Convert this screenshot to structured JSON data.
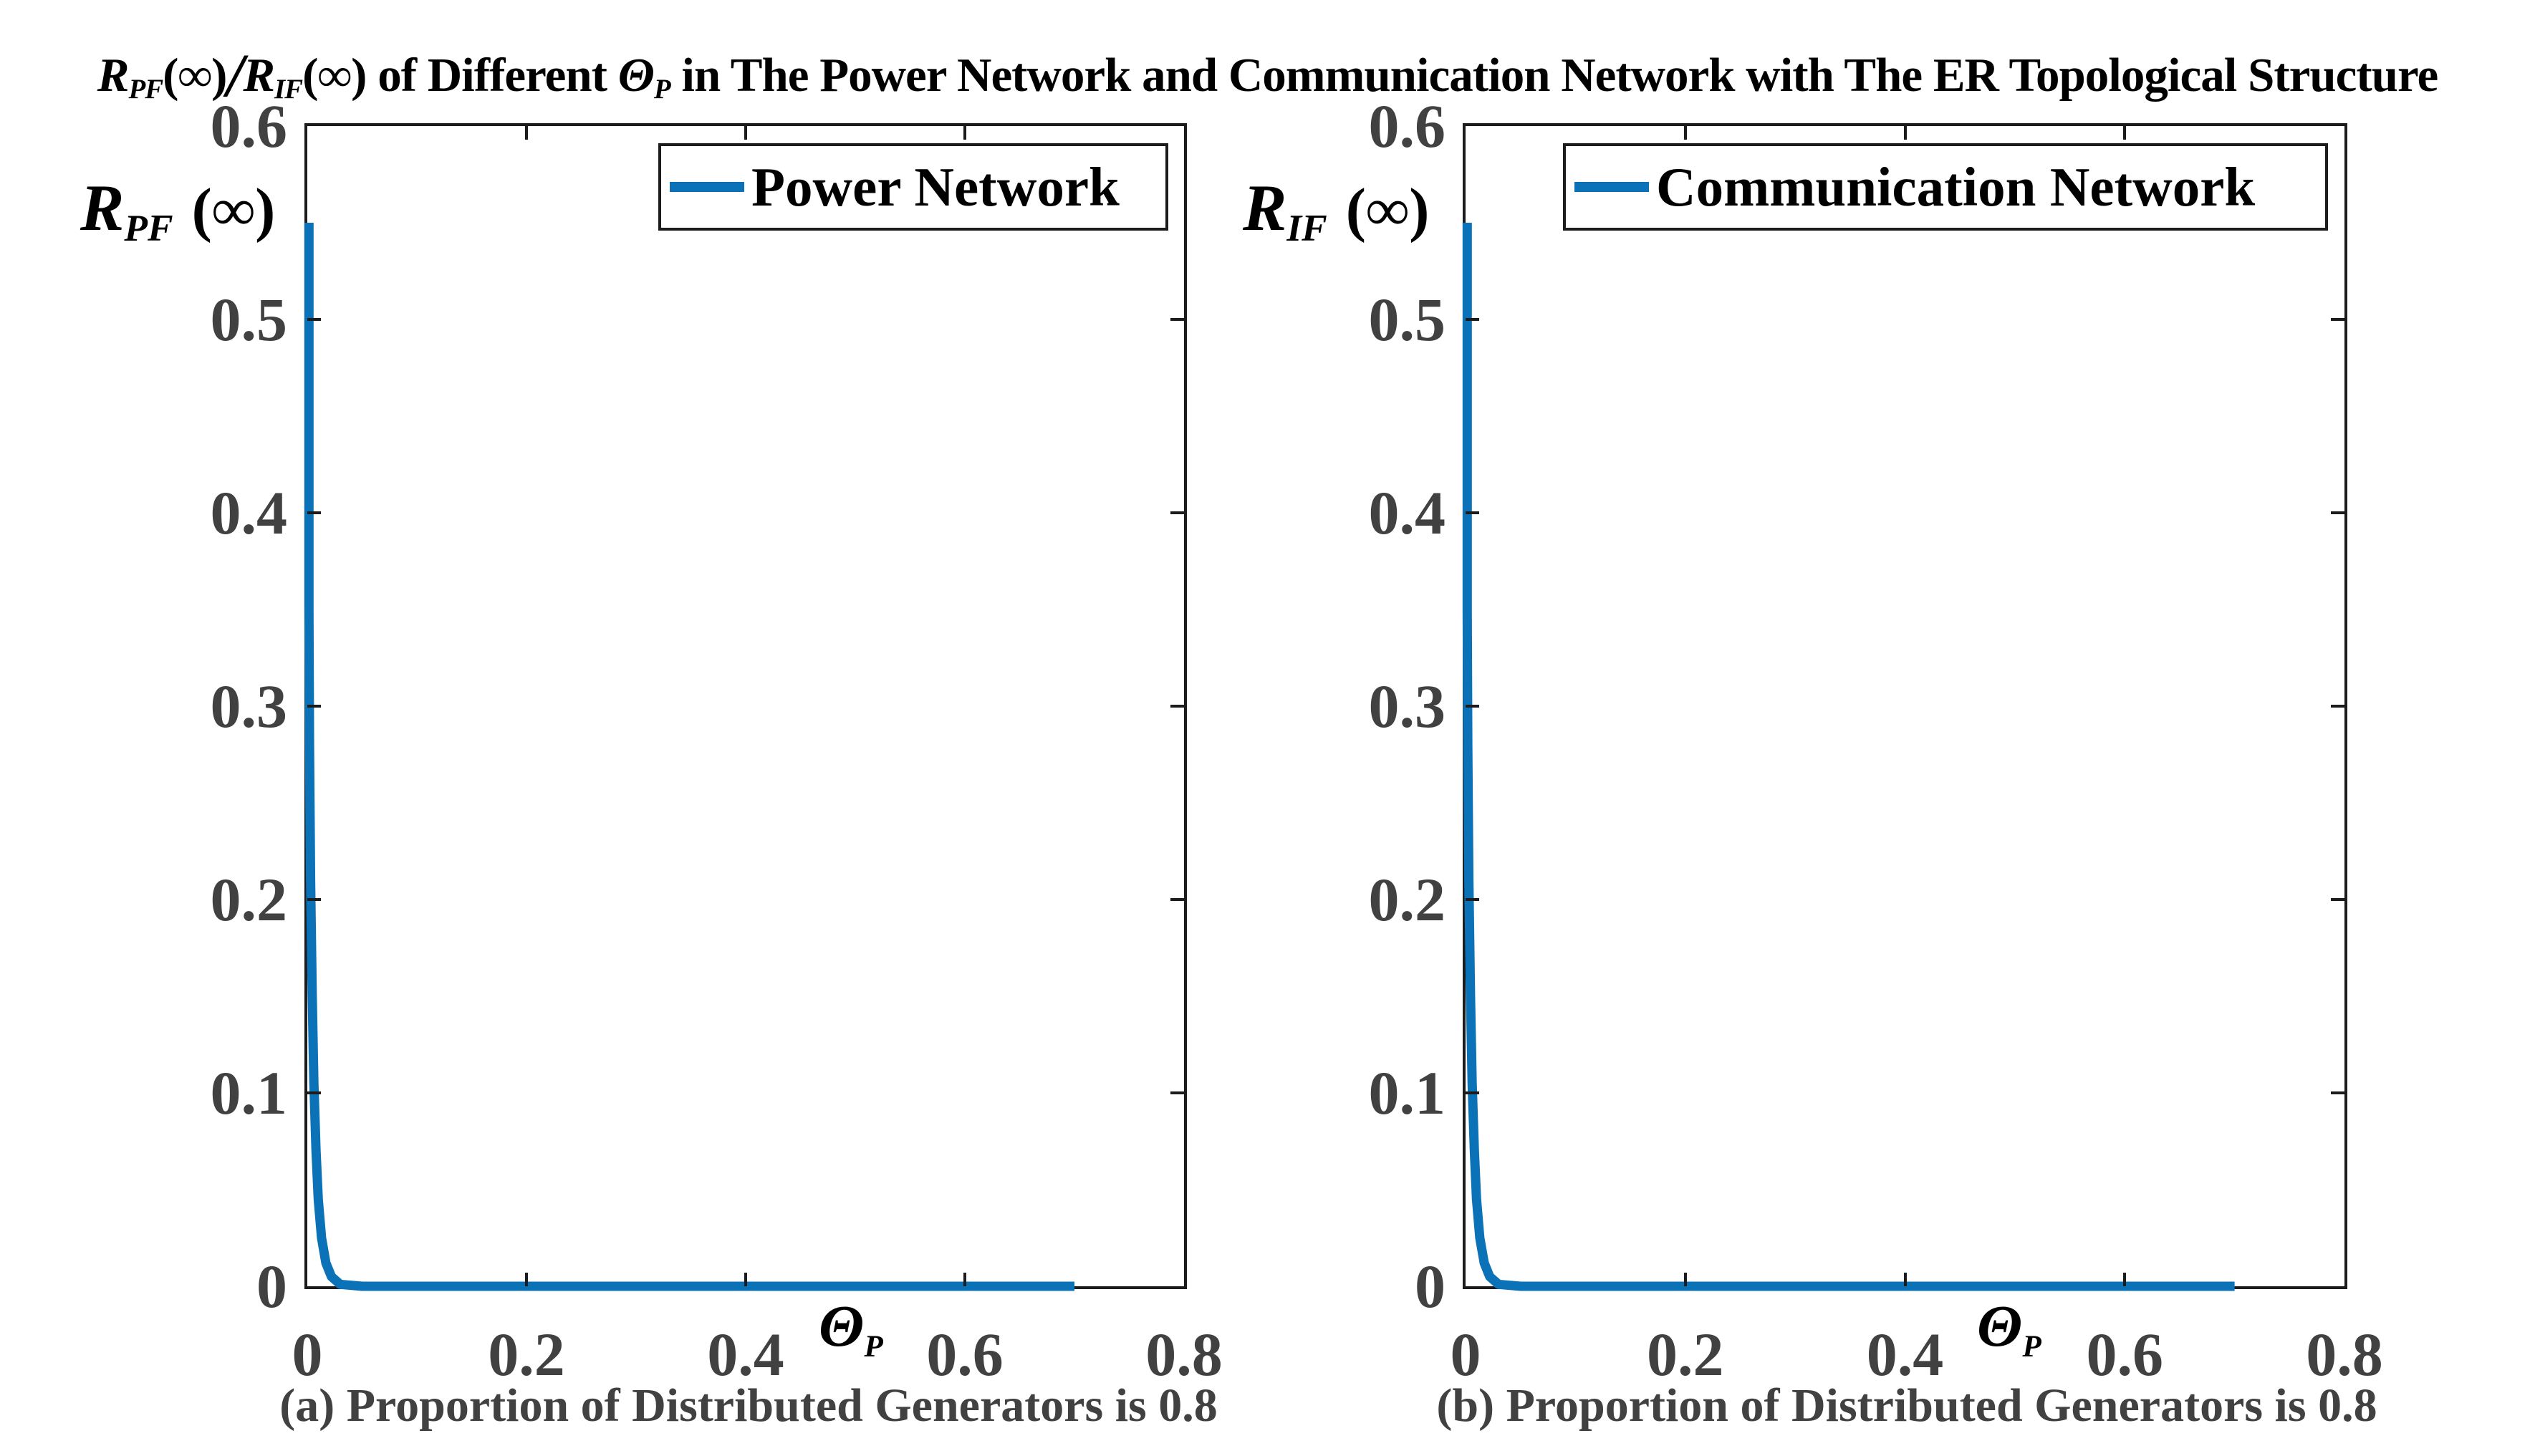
{
  "figure": {
    "title": {
      "r1": "R",
      "r1_sub": "PF",
      "inf1": "(∞)",
      "slash": "/",
      "r2": "R",
      "r2_sub": "IF",
      "inf2": "(∞)",
      "mid": " of Different ",
      "theta": "Θ",
      "theta_sub": "P",
      "rest": " in The Power Network and Communication Network with The ER Topological Structure"
    }
  },
  "charts": [
    {
      "ylabel": {
        "base": "R",
        "sub": "PF",
        "suffix": "(∞)"
      },
      "xlabel": {
        "base": "Θ",
        "sub": "P"
      },
      "legend_label": "Power Network",
      "caption": "(a) Proportion of Distributed Generators is 0.8"
    },
    {
      "ylabel": {
        "base": "R",
        "sub": "IF",
        "suffix": "(∞)"
      },
      "xlabel": {
        "base": "Θ",
        "sub": "P"
      },
      "legend_label": "Communication Network",
      "caption": "(b) Proportion of Distributed Generators is 0.8"
    }
  ],
  "colors": {
    "curve_blue": "#0b72b8",
    "axis": "#1c1c1c",
    "tick_label_gray": "#414141"
  },
  "chart_data": [
    {
      "type": "line",
      "title": "(a) Proportion of Distributed Generators is 0.8",
      "xlabel": "Θ_P",
      "ylabel": "R_PF(∞)",
      "xlim": [
        0,
        0.8
      ],
      "ylim": [
        0,
        0.6
      ],
      "xticks": [
        0,
        0.2,
        0.4,
        0.6,
        0.8
      ],
      "yticks": [
        0,
        0.1,
        0.2,
        0.3,
        0.4,
        0.5,
        0.6
      ],
      "grid": false,
      "legend_position": "upper right",
      "series": [
        {
          "name": "Power Network",
          "color": "#0b72b8",
          "x": [
            0.0015,
            0.0015,
            0.002,
            0.003,
            0.0045,
            0.006,
            0.008,
            0.01,
            0.013,
            0.017,
            0.022,
            0.03,
            0.05,
            0.7
          ],
          "y": [
            0.55,
            0.35,
            0.28,
            0.21,
            0.15,
            0.105,
            0.07,
            0.045,
            0.025,
            0.012,
            0.005,
            0.001,
            0.0,
            0.0
          ]
        }
      ]
    },
    {
      "type": "line",
      "title": "(b) Proportion of Distributed Generators is 0.8",
      "xlabel": "Θ_P",
      "ylabel": "R_IF(∞)",
      "xlim": [
        0,
        0.8
      ],
      "ylim": [
        0,
        0.6
      ],
      "xticks": [
        0,
        0.2,
        0.4,
        0.6,
        0.8
      ],
      "yticks": [
        0,
        0.1,
        0.2,
        0.3,
        0.4,
        0.5,
        0.6
      ],
      "grid": false,
      "legend_position": "upper left",
      "series": [
        {
          "name": "Communication Network",
          "color": "#0b72b8",
          "x": [
            0.0015,
            0.0015,
            0.002,
            0.003,
            0.0045,
            0.006,
            0.008,
            0.01,
            0.013,
            0.017,
            0.022,
            0.03,
            0.05,
            0.7
          ],
          "y": [
            0.55,
            0.35,
            0.28,
            0.21,
            0.15,
            0.105,
            0.07,
            0.045,
            0.025,
            0.012,
            0.005,
            0.001,
            0.0,
            0.0
          ]
        }
      ]
    }
  ]
}
